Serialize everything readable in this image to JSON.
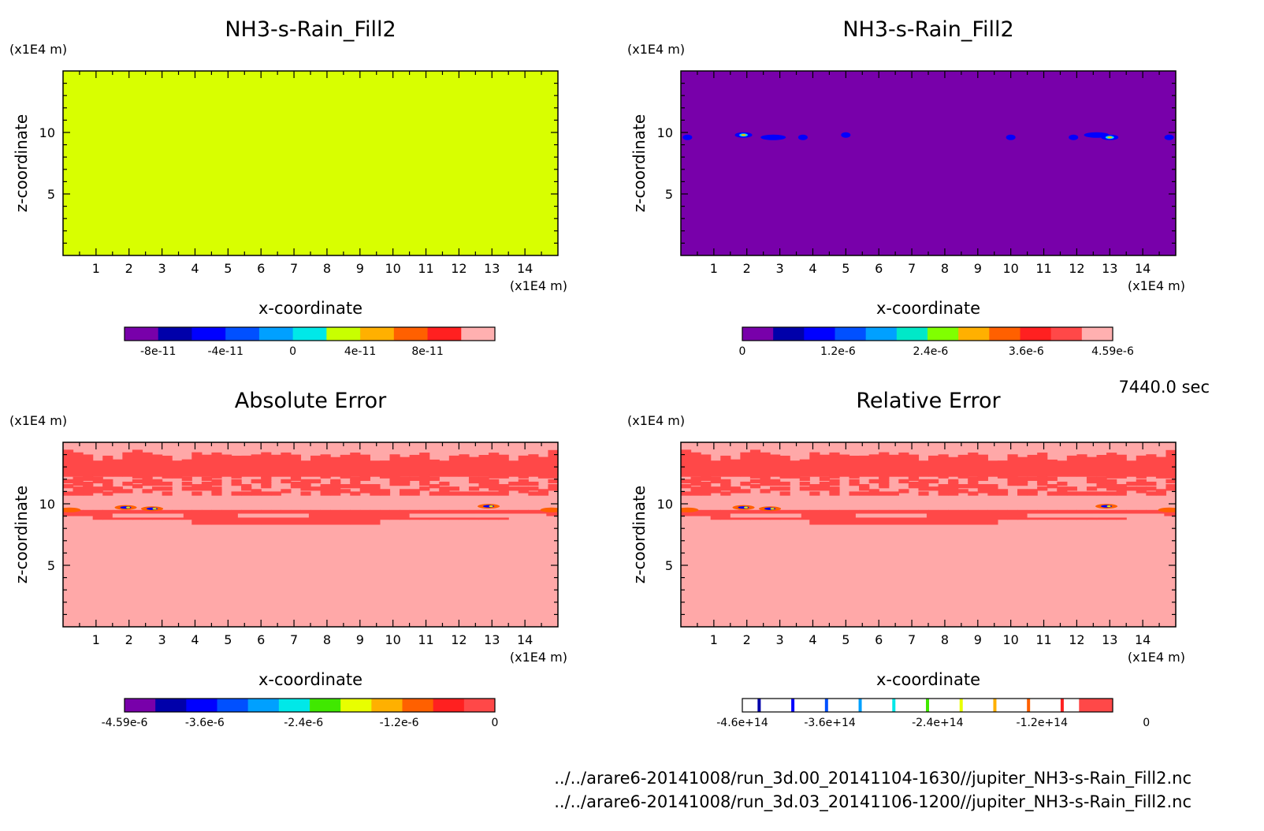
{
  "time_label": "7440.0 sec",
  "files": [
    "../../arare6-20141008/run_3d.00_20141104-1630//jupiter_NH3-s-Rain_Fill2.nc",
    "../../arare6-20141008/run_3d.03_20141106-1200//jupiter_NH3-s-Rain_Fill2.nc"
  ],
  "chart_data": [
    {
      "type": "heatmap",
      "title": "NH3-s-Rain_Fill2",
      "xlabel": "x-coordinate",
      "ylabel": "z-coordinate",
      "x_unit": "(x1E4 m)",
      "z_unit": "(x1E4 m)",
      "xlim": [
        0,
        15
      ],
      "zlim": [
        0,
        15
      ],
      "x_ticks": [
        "1",
        "2",
        "3",
        "4",
        "5",
        "6",
        "7",
        "8",
        "9",
        "10",
        "11",
        "12",
        "13",
        "14"
      ],
      "z_ticks": [
        "5",
        "10"
      ],
      "field": "uniform",
      "fill_color": "#d8ff00",
      "colorbar": {
        "style": "filled",
        "colors": [
          "#7800aa",
          "#0000aa",
          "#0000ff",
          "#0050ff",
          "#00a0ff",
          "#00e8e8",
          "#c8ff00",
          "#ffb000",
          "#ff6000",
          "#ff2020",
          "#ffb0b0"
        ],
        "tick_labels": [
          "-8e-11",
          "-4e-11",
          "0",
          "4e-11",
          "8e-11"
        ],
        "tick_positions": [
          1,
          3,
          5,
          7,
          9
        ]
      }
    },
    {
      "type": "heatmap",
      "title": "NH3-s-Rain_Fill2",
      "xlabel": "x-coordinate",
      "ylabel": "z-coordinate",
      "x_unit": "(x1E4 m)",
      "z_unit": "(x1E4 m)",
      "xlim": [
        0,
        15
      ],
      "zlim": [
        0,
        15
      ],
      "x_ticks": [
        "1",
        "2",
        "3",
        "4",
        "5",
        "6",
        "7",
        "8",
        "9",
        "10",
        "11",
        "12",
        "13",
        "14"
      ],
      "z_ticks": [
        "5",
        "10"
      ],
      "field": "rain_spots",
      "fill_color": "#7800aa",
      "spot_z": 9.6,
      "spot_x": [
        0.2,
        1.9,
        2.8,
        3.7,
        5.0,
        10.0,
        11.9,
        12.6,
        13.0,
        14.8
      ],
      "colorbar": {
        "style": "filled",
        "colors": [
          "#7800aa",
          "#0000aa",
          "#0000ff",
          "#0050ff",
          "#00a0ff",
          "#00e8c8",
          "#80ff00",
          "#ffb000",
          "#ff6000",
          "#ff2020",
          "#ff4848",
          "#ffb0b0"
        ],
        "tick_labels": [
          "0",
          "1.2e-6",
          "2.4e-6",
          "3.6e-6",
          "4.59e-6"
        ],
        "tick_positions": [
          0,
          3.1,
          6.1,
          9.2,
          12
        ]
      }
    },
    {
      "type": "heatmap",
      "title": "Absolute Error",
      "xlabel": "x-coordinate",
      "ylabel": "z-coordinate",
      "x_unit": "(x1E4 m)",
      "z_unit": "(x1E4 m)",
      "xlim": [
        0,
        15
      ],
      "zlim": [
        0,
        15
      ],
      "x_ticks": [
        "1",
        "2",
        "3",
        "4",
        "5",
        "6",
        "7",
        "8",
        "9",
        "10",
        "11",
        "12",
        "13",
        "14"
      ],
      "z_ticks": [
        "5",
        "10"
      ],
      "field": "error_band",
      "fill_color": "#ffa8a8",
      "band_color": "#ff4848",
      "colorbar": {
        "style": "filled",
        "colors": [
          "#7800aa",
          "#0000aa",
          "#0000ff",
          "#0050ff",
          "#00a0ff",
          "#00e8e8",
          "#40e800",
          "#e8ff00",
          "#ffb000",
          "#ff6000",
          "#ff2020",
          "#ff4848"
        ],
        "tick_labels": [
          "-4.59e-6",
          "-3.6e-6",
          "-2.4e-6",
          "-1.2e-6",
          "0"
        ],
        "tick_positions": [
          0,
          2.6,
          5.8,
          8.9,
          12
        ]
      }
    },
    {
      "type": "heatmap",
      "title": "Relative Error",
      "xlabel": "x-coordinate",
      "ylabel": "z-coordinate",
      "x_unit": "(x1E4 m)",
      "z_unit": "(x1E4 m)",
      "xlim": [
        0,
        15
      ],
      "zlim": [
        0,
        15
      ],
      "x_ticks": [
        "1",
        "2",
        "3",
        "4",
        "5",
        "6",
        "7",
        "8",
        "9",
        "10",
        "11",
        "12",
        "13",
        "14"
      ],
      "z_ticks": [
        "5",
        "10"
      ],
      "field": "error_band",
      "fill_color": "#ffa8a8",
      "band_color": "#ff4848",
      "colorbar": {
        "style": "lines",
        "colors": [
          "#0000aa",
          "#0000ff",
          "#0050ff",
          "#00a0ff",
          "#00e8e8",
          "#40e800",
          "#e8ff00",
          "#ffb000",
          "#ff6000",
          "#ff2020"
        ],
        "last_color": "#ff4848",
        "tick_labels": [
          "-4.6e+14",
          "-3.6e+14",
          "-2.4e+14",
          "-1.2e+14",
          "0"
        ],
        "tick_positions": [
          0,
          2.6,
          5.8,
          8.9,
          12
        ]
      }
    }
  ]
}
